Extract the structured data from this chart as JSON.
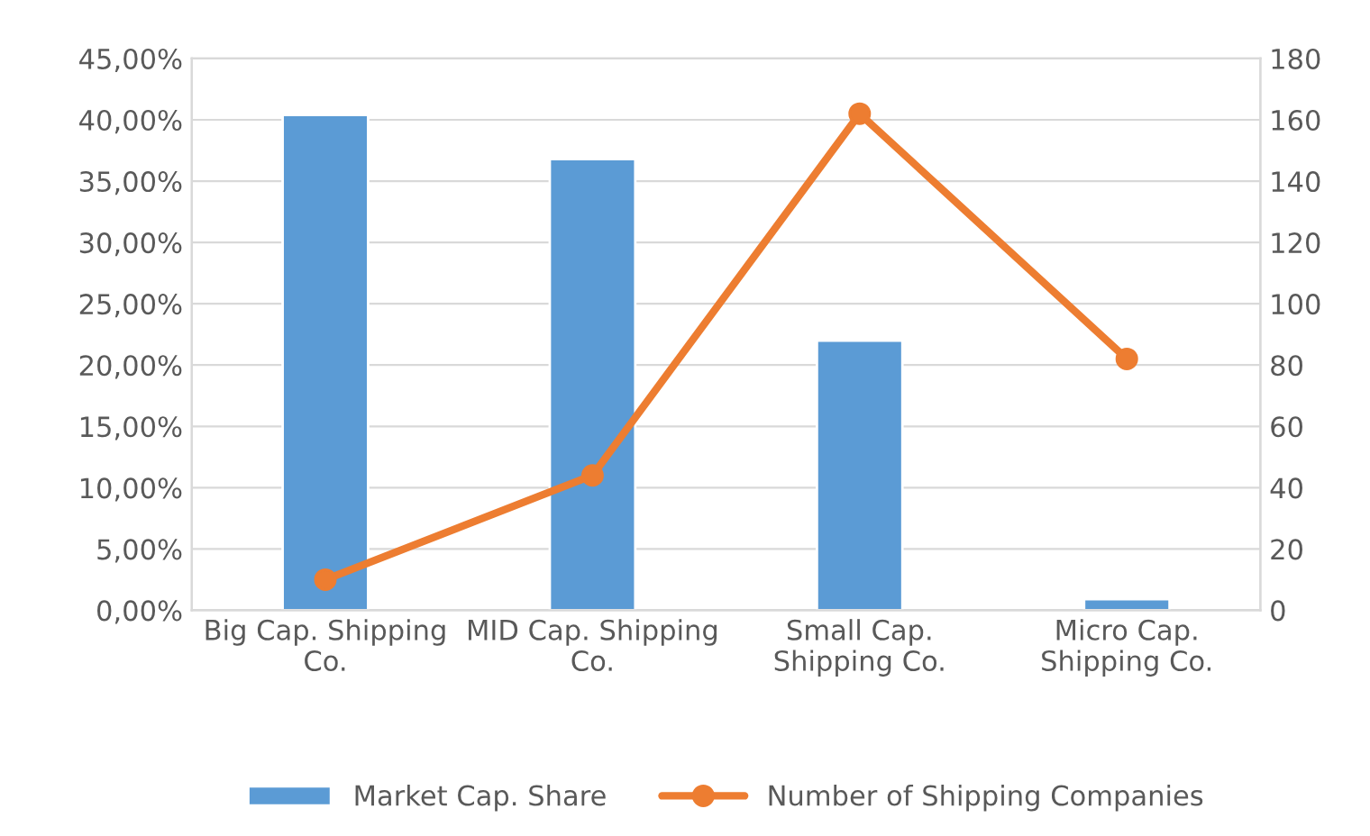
{
  "chart_data": {
    "type": "bar",
    "categories": [
      "Big Cap. Shipping Co.",
      "MID Cap. Shipping Co.",
      "Small Cap. Shipping Co.",
      "Micro Cap. Shipping Co."
    ],
    "series": [
      {
        "name": "Market Cap. Share",
        "color": "#5b9bd5",
        "values": [
          40.4,
          36.8,
          22.0,
          0.9
        ]
      },
      {
        "name": "Number of Shipping Companies",
        "type": "line",
        "axis": "y2",
        "color": "#ed7d31",
        "marker": "circle",
        "values": [
          10,
          44,
          162,
          82
        ]
      }
    ],
    "ylim": [
      0,
      45
    ],
    "yticks": [
      {
        "value": 0,
        "label": "0,00%"
      },
      {
        "value": 5,
        "label": "5,00%"
      },
      {
        "value": 10,
        "label": "10,00%"
      },
      {
        "value": 15,
        "label": "15,00%"
      },
      {
        "value": 20,
        "label": "20,00%"
      },
      {
        "value": 25,
        "label": "25,00%"
      },
      {
        "value": 30,
        "label": "30,00%"
      },
      {
        "value": 35,
        "label": "35,00%"
      },
      {
        "value": 40,
        "label": "40,00%"
      },
      {
        "value": 45,
        "label": "45,00%"
      }
    ],
    "y2lim": [
      0,
      180
    ],
    "y2ticks": [
      0,
      20,
      40,
      60,
      80,
      100,
      120,
      140,
      160,
      180
    ],
    "grid": "y",
    "legend": "bottom"
  }
}
